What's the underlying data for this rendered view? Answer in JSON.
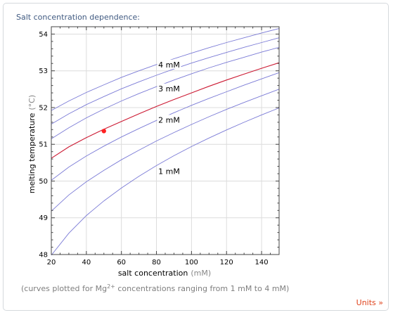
{
  "pod": {
    "title": "Salt concentration dependence:",
    "caption_pre": "(curves plotted for Mg",
    "caption_sup": "2+",
    "caption_post": " concentrations ranging from 1 mM to 4 mM)",
    "units_link": "Units »"
  },
  "chart_data": {
    "type": "line",
    "xlabel": "salt concentration",
    "xlabel_unit": "(mM)",
    "ylabel": "melting temperature",
    "ylabel_unit": "(°C)",
    "xlim": [
      20,
      150
    ],
    "ylim": [
      48,
      54.2
    ],
    "xticks": [
      20,
      40,
      60,
      80,
      100,
      120,
      140
    ],
    "yticks": [
      48,
      49,
      50,
      51,
      52,
      53,
      54
    ],
    "grid": true,
    "curve_color": "#7a7ad6",
    "highlight_color": "#cc1a33",
    "series": [
      {
        "x": [
          20,
          30,
          40,
          50,
          60,
          70,
          80,
          90,
          100,
          110,
          120,
          130,
          140,
          150
        ],
        "y": [
          47.98,
          48.58,
          49.06,
          49.46,
          49.81,
          50.13,
          50.42,
          50.69,
          50.94,
          51.17,
          51.39,
          51.6,
          51.8,
          51.99
        ]
      },
      {
        "x": [
          20,
          30,
          40,
          50,
          60,
          70,
          80,
          90,
          100,
          110,
          120,
          130,
          140,
          150
        ],
        "y": [
          49.18,
          49.62,
          49.98,
          50.29,
          50.58,
          50.84,
          51.09,
          51.32,
          51.54,
          51.75,
          51.95,
          52.14,
          52.32,
          52.5
        ]
      },
      {
        "x": [
          20,
          30,
          40,
          50,
          60,
          70,
          80,
          90,
          100,
          110,
          120,
          130,
          140,
          150
        ],
        "y": [
          50.02,
          50.38,
          50.68,
          50.95,
          51.2,
          51.43,
          51.65,
          51.86,
          52.06,
          52.25,
          52.43,
          52.61,
          52.78,
          52.95
        ]
      },
      {
        "x": [
          20,
          30,
          40,
          50,
          60,
          70,
          80,
          90,
          100,
          110,
          120,
          130,
          140,
          150
        ],
        "y": [
          50.62,
          50.93,
          51.18,
          51.41,
          51.62,
          51.83,
          52.03,
          52.22,
          52.4,
          52.58,
          52.75,
          52.91,
          53.07,
          53.22
        ],
        "highlight": true
      },
      {
        "x": [
          20,
          30,
          40,
          50,
          60,
          70,
          80,
          90,
          100,
          110,
          120,
          130,
          140,
          150
        ],
        "y": [
          51.15,
          51.45,
          51.72,
          51.96,
          52.18,
          52.38,
          52.57,
          52.75,
          52.92,
          53.08,
          53.23,
          53.37,
          53.51,
          53.64
        ]
      },
      {
        "x": [
          20,
          30,
          40,
          50,
          60,
          70,
          80,
          90,
          100,
          110,
          120,
          130,
          140,
          150
        ],
        "y": [
          51.55,
          51.83,
          52.08,
          52.3,
          52.51,
          52.7,
          52.88,
          53.05,
          53.21,
          53.36,
          53.5,
          53.64,
          53.77,
          53.9
        ]
      },
      {
        "x": [
          20,
          30,
          40,
          50,
          60,
          70,
          80,
          90,
          100,
          110,
          120,
          130,
          140,
          150
        ],
        "y": [
          51.92,
          52.18,
          52.41,
          52.62,
          52.82,
          53.0,
          53.17,
          53.33,
          53.48,
          53.63,
          53.77,
          53.9,
          54.03,
          54.15
        ]
      }
    ],
    "curve_labels": [
      {
        "text": "1 mM",
        "x": 86,
        "y": 50.25
      },
      {
        "text": "2 mM",
        "x": 86,
        "y": 51.65
      },
      {
        "text": "3 mM",
        "x": 86,
        "y": 52.5
      },
      {
        "text": "4 mM",
        "x": 86,
        "y": 53.15
      }
    ],
    "point": {
      "x": 50,
      "y": 51.36
    }
  }
}
